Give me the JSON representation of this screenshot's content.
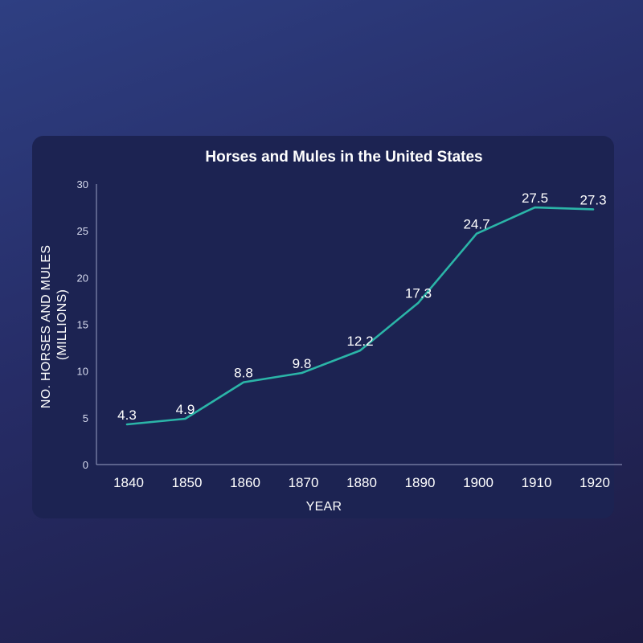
{
  "chart_data": {
    "type": "line",
    "title": "Horses and Mules in the United States",
    "xlabel": "YEAR",
    "ylabel": [
      "NO. HORSES AND MULES",
      "(MILLIONS)"
    ],
    "categories": [
      "1840",
      "1850",
      "1860",
      "1870",
      "1880",
      "1890",
      "1900",
      "1910",
      "1920"
    ],
    "series": [
      {
        "values": [
          4.3,
          4.9,
          8.8,
          9.8,
          12.2,
          17.3,
          24.7,
          27.5,
          27.3
        ]
      }
    ],
    "data_labels": [
      "4.3",
      "4.9",
      "8.8",
      "9.8",
      "12.2",
      "17.3",
      "24.7",
      "27.5",
      "27.3"
    ],
    "yticks": [
      0,
      5,
      10,
      15,
      20,
      25,
      30
    ],
    "ylim": [
      0,
      30
    ],
    "grid": false,
    "legend": "none",
    "colors": {
      "line": "#2bb5a8",
      "card": "#1c2352",
      "axis": "#9aa0c4",
      "text": "#ffffff"
    }
  }
}
